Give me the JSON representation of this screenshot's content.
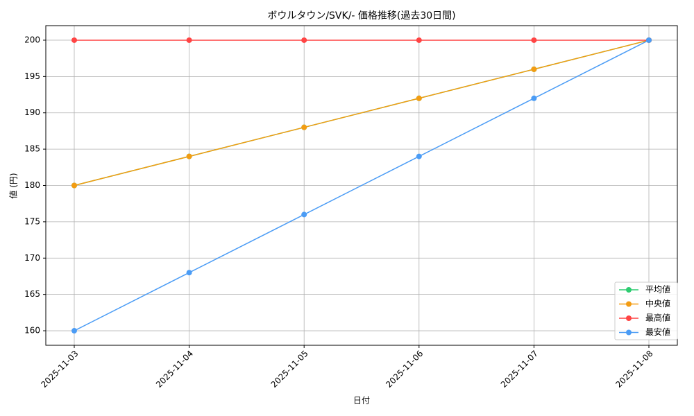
{
  "chart_data": {
    "type": "line",
    "title": "ボウルタウン/SVK/- 価格推移(過去30日間)",
    "x_label": "日付",
    "y_label": "値 (円)",
    "categories": [
      "2025-11-03",
      "2025-11-04",
      "2025-11-05",
      "2025-11-06",
      "2025-11-07",
      "2025-11-08"
    ],
    "series": [
      {
        "name": "平均値",
        "color": "#2ecc71",
        "values": [
          180,
          184,
          188,
          192,
          196,
          200
        ]
      },
      {
        "name": "中央値",
        "color": "#f39c12",
        "values": [
          180,
          184,
          188,
          192,
          196,
          200
        ]
      },
      {
        "name": "最高値",
        "color": "#ff4444",
        "values": [
          200,
          200,
          200,
          200,
          200,
          200
        ]
      },
      {
        "name": "最安値",
        "color": "#4b9cf5",
        "values": [
          160,
          168,
          176,
          184,
          192,
          200
        ]
      }
    ],
    "ylim": [
      158,
      202
    ],
    "yticks": [
      160,
      165,
      170,
      175,
      180,
      185,
      190,
      195,
      200
    ],
    "grid": true,
    "legend": "lower right"
  }
}
